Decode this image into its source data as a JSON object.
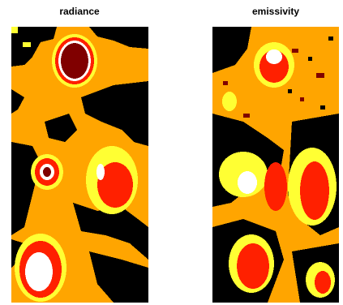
{
  "panels": [
    {
      "title": "radiance"
    },
    {
      "title": "emissivity"
    }
  ]
}
